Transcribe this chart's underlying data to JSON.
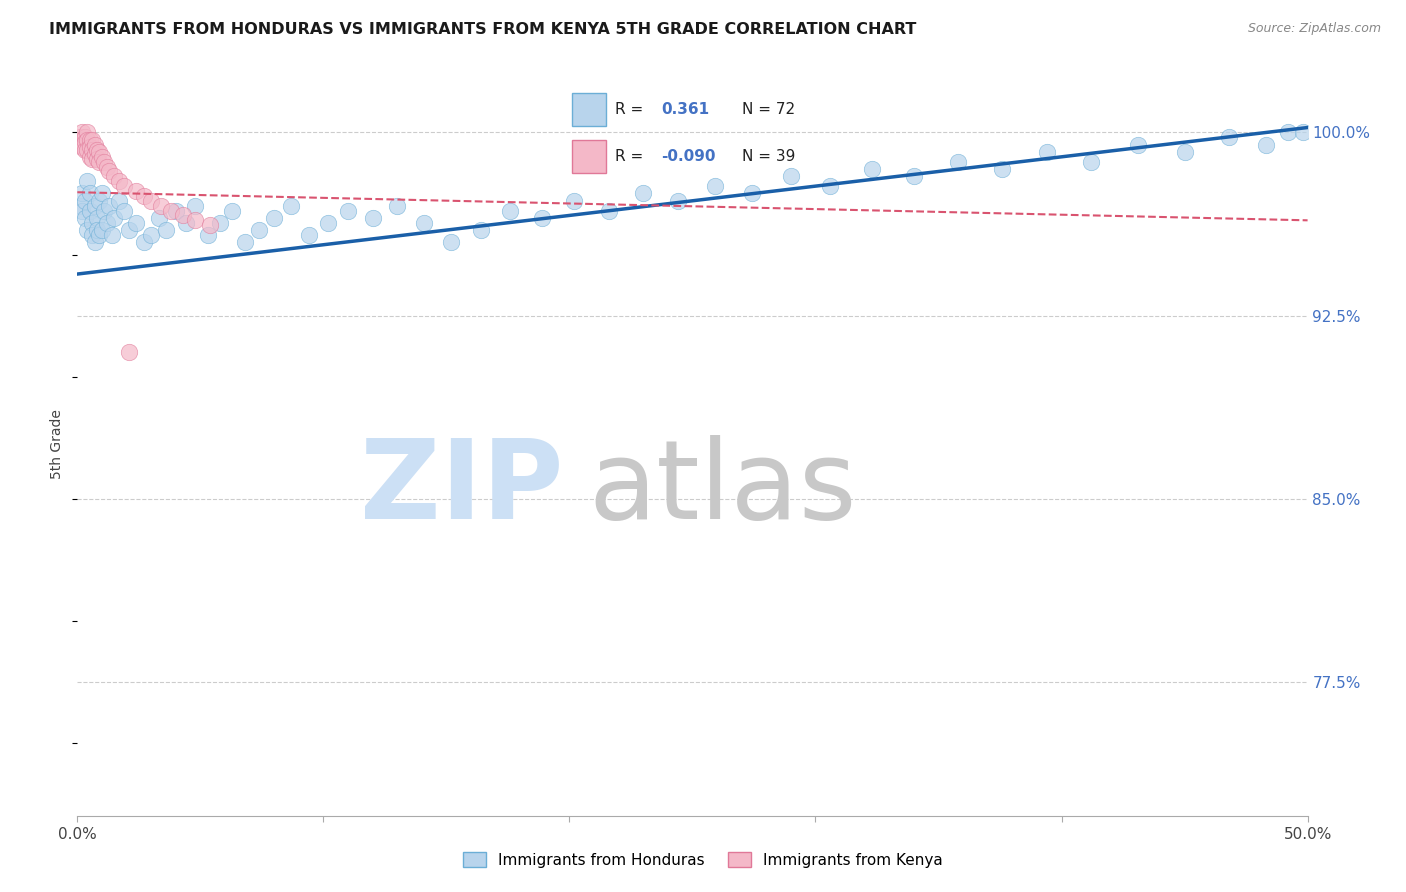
{
  "title": "IMMIGRANTS FROM HONDURAS VS IMMIGRANTS FROM KENYA 5TH GRADE CORRELATION CHART",
  "source": "Source: ZipAtlas.com",
  "ylabel": "5th Grade",
  "xlim": [
    0.0,
    0.5
  ],
  "ylim": [
    0.72,
    1.025
  ],
  "x_ticks": [
    0.0,
    0.1,
    0.2,
    0.3,
    0.4,
    0.5
  ],
  "x_tick_labels": [
    "0.0%",
    "",
    "",
    "",
    "",
    "50.0%"
  ],
  "y_ticks_right": [
    0.775,
    0.85,
    0.925,
    1.0
  ],
  "y_tick_labels_right": [
    "77.5%",
    "85.0%",
    "92.5%",
    "100.0%"
  ],
  "legend_labels": [
    "Immigrants from Honduras",
    "Immigrants from Kenya"
  ],
  "R_honduras": "0.361",
  "N_honduras": "72",
  "R_kenya": "-0.090",
  "N_kenya": "39",
  "blue_scatter_face": "#b8d4ec",
  "blue_scatter_edge": "#6baed6",
  "pink_scatter_face": "#f4b8c8",
  "pink_scatter_edge": "#e07898",
  "trend_blue_color": "#1a5fa8",
  "trend_pink_color": "#d9536f",
  "grid_color": "#cccccc",
  "right_axis_color": "#4472C4",
  "title_color": "#1a1a1a",
  "source_color": "#888888",
  "watermark_zip": "#cce0f5",
  "watermark_atlas": "#c8c8c8",
  "honduras_x": [
    0.001,
    0.002,
    0.002,
    0.003,
    0.003,
    0.004,
    0.004,
    0.005,
    0.005,
    0.006,
    0.006,
    0.007,
    0.007,
    0.008,
    0.008,
    0.009,
    0.009,
    0.01,
    0.01,
    0.011,
    0.012,
    0.013,
    0.014,
    0.015,
    0.017,
    0.019,
    0.021,
    0.024,
    0.027,
    0.03,
    0.033,
    0.036,
    0.04,
    0.044,
    0.048,
    0.053,
    0.058,
    0.063,
    0.068,
    0.074,
    0.08,
    0.087,
    0.094,
    0.102,
    0.11,
    0.12,
    0.13,
    0.141,
    0.152,
    0.164,
    0.176,
    0.189,
    0.202,
    0.216,
    0.23,
    0.244,
    0.259,
    0.274,
    0.29,
    0.306,
    0.323,
    0.34,
    0.358,
    0.376,
    0.394,
    0.412,
    0.431,
    0.45,
    0.468,
    0.483,
    0.492,
    0.498
  ],
  "honduras_y": [
    0.97,
    0.975,
    0.968,
    0.972,
    0.965,
    0.98,
    0.96,
    0.968,
    0.975,
    0.963,
    0.958,
    0.97,
    0.955,
    0.965,
    0.96,
    0.972,
    0.958,
    0.975,
    0.96,
    0.968,
    0.963,
    0.97,
    0.958,
    0.965,
    0.972,
    0.968,
    0.96,
    0.963,
    0.955,
    0.958,
    0.965,
    0.96,
    0.968,
    0.963,
    0.97,
    0.958,
    0.963,
    0.968,
    0.955,
    0.96,
    0.965,
    0.97,
    0.958,
    0.963,
    0.968,
    0.965,
    0.97,
    0.963,
    0.955,
    0.96,
    0.968,
    0.965,
    0.972,
    0.968,
    0.975,
    0.972,
    0.978,
    0.975,
    0.982,
    0.978,
    0.985,
    0.982,
    0.988,
    0.985,
    0.992,
    0.988,
    0.995,
    0.992,
    0.998,
    0.995,
    1.0,
    1.0
  ],
  "kenya_x": [
    0.001,
    0.001,
    0.002,
    0.002,
    0.002,
    0.003,
    0.003,
    0.003,
    0.004,
    0.004,
    0.004,
    0.005,
    0.005,
    0.005,
    0.006,
    0.006,
    0.006,
    0.007,
    0.007,
    0.008,
    0.008,
    0.009,
    0.009,
    0.01,
    0.011,
    0.012,
    0.013,
    0.015,
    0.017,
    0.019,
    0.021,
    0.024,
    0.027,
    0.03,
    0.034,
    0.038,
    0.043,
    0.048,
    0.054
  ],
  "kenya_y": [
    0.995,
    0.998,
    1.0,
    0.997,
    0.994,
    0.998,
    0.996,
    0.993,
    1.0,
    0.997,
    0.993,
    0.997,
    0.994,
    0.99,
    0.997,
    0.993,
    0.989,
    0.995,
    0.991,
    0.993,
    0.989,
    0.992,
    0.988,
    0.99,
    0.988,
    0.986,
    0.984,
    0.982,
    0.98,
    0.978,
    0.91,
    0.976,
    0.974,
    0.972,
    0.97,
    0.968,
    0.966,
    0.964,
    0.962
  ],
  "blue_trend_x0": 0.0,
  "blue_trend_y0": 0.942,
  "blue_trend_x1": 0.5,
  "blue_trend_y1": 1.002,
  "pink_trend_x0": 0.0,
  "pink_trend_y0": 0.9755,
  "pink_trend_x1": 0.5,
  "pink_trend_y1": 0.964
}
